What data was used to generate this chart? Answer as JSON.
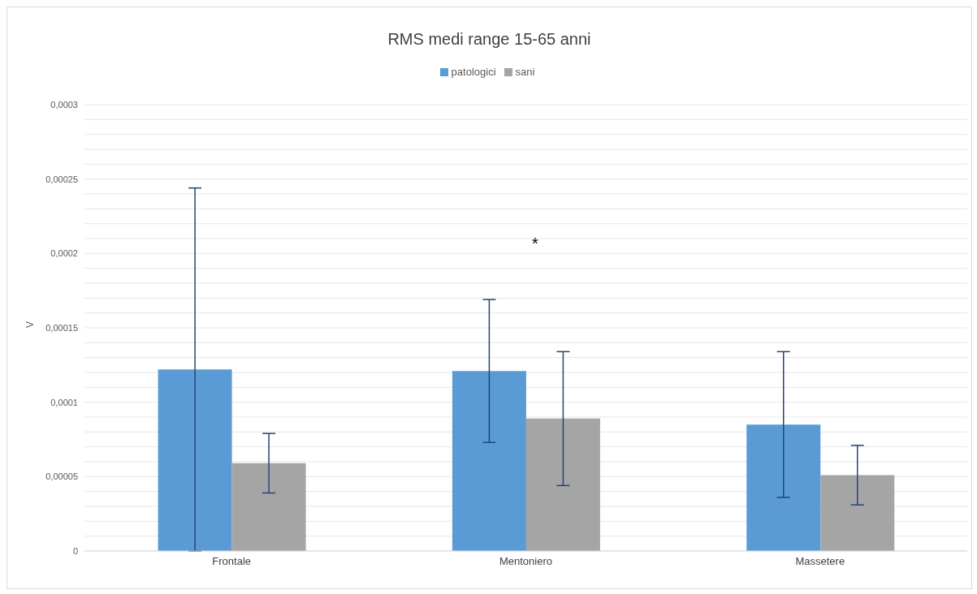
{
  "chart_data": {
    "type": "bar",
    "title": "RMS medi range 15-65 anni",
    "ylabel": "V",
    "categories": [
      "Frontale",
      "Mentoniero",
      "Massetere"
    ],
    "series": [
      {
        "name": "patologici",
        "color": "#5b9bd5",
        "values": [
          0.000122,
          0.000121,
          8.5e-05
        ],
        "errors": [
          0.000122,
          4.8e-05,
          4.9e-05
        ]
      },
      {
        "name": "sani",
        "color": "#a5a5a5",
        "values": [
          5.9e-05,
          8.9e-05,
          5.1e-05
        ],
        "errors": [
          2e-05,
          4.5e-05,
          2e-05
        ]
      }
    ],
    "ylim": [
      0,
      0.0003
    ],
    "yticks": [
      {
        "value": 0,
        "label": "0"
      },
      {
        "value": 1e-05,
        "label": null
      },
      {
        "value": 2e-05,
        "label": null
      },
      {
        "value": 3e-05,
        "label": null
      },
      {
        "value": 4e-05,
        "label": null
      },
      {
        "value": 5e-05,
        "label": "0,00005"
      },
      {
        "value": 6e-05,
        "label": null
      },
      {
        "value": 7e-05,
        "label": null
      },
      {
        "value": 8e-05,
        "label": null
      },
      {
        "value": 9e-05,
        "label": null
      },
      {
        "value": 0.0001,
        "label": "0,0001"
      },
      {
        "value": 0.00011,
        "label": null
      },
      {
        "value": 0.00012,
        "label": null
      },
      {
        "value": 0.00013,
        "label": null
      },
      {
        "value": 0.00014,
        "label": null
      },
      {
        "value": 0.00015,
        "label": "0,00015"
      },
      {
        "value": 0.00016,
        "label": null
      },
      {
        "value": 0.00017,
        "label": null
      },
      {
        "value": 0.00018,
        "label": null
      },
      {
        "value": 0.00019,
        "label": null
      },
      {
        "value": 0.0002,
        "label": "0,0002"
      },
      {
        "value": 0.00021,
        "label": null
      },
      {
        "value": 0.00022,
        "label": null
      },
      {
        "value": 0.00023,
        "label": null
      },
      {
        "value": 0.00024,
        "label": null
      },
      {
        "value": 0.00025,
        "label": "0,00025"
      },
      {
        "value": 0.00026,
        "label": null
      },
      {
        "value": 0.00027,
        "label": null
      },
      {
        "value": 0.00028,
        "label": null
      },
      {
        "value": 0.00029,
        "label": null
      },
      {
        "value": 0.0003,
        "label": "0,0003"
      }
    ],
    "grid": true,
    "legend": "top",
    "annotations": [
      "*"
    ]
  }
}
